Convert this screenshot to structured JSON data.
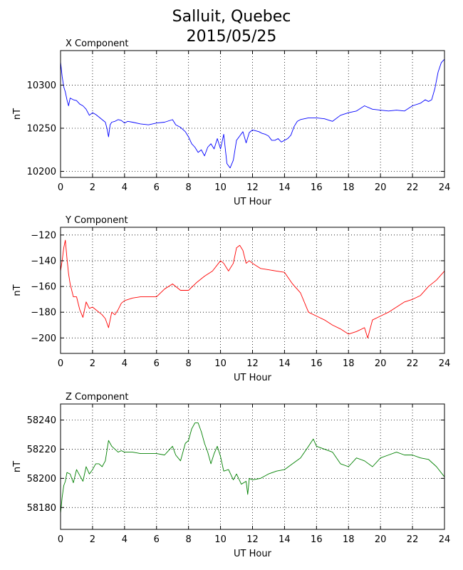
{
  "figure": {
    "title_line1": "Salluit, Quebec",
    "title_line2": "2015/05/25"
  },
  "chart_data": [
    {
      "type": "line",
      "title": "X Component",
      "xlabel": "UT Hour",
      "ylabel": "nT",
      "xlim": [
        0,
        24
      ],
      "ylim": [
        10193,
        10340
      ],
      "xticks": [
        0,
        2,
        4,
        6,
        8,
        10,
        12,
        14,
        16,
        18,
        20,
        22,
        24
      ],
      "yticks": [
        10200,
        10250,
        10300
      ],
      "grid": true,
      "color": "#0000ff",
      "series": [
        {
          "x": [
            0.0,
            0.1,
            0.2,
            0.3,
            0.4,
            0.5,
            0.6,
            0.8,
            1.0,
            1.2,
            1.4,
            1.6,
            1.8,
            2.0,
            2.2,
            2.4,
            2.6,
            2.8,
            2.9,
            3.0,
            3.1,
            3.2,
            3.4,
            3.6,
            3.8,
            4.0,
            4.2,
            4.5,
            5.0,
            5.5,
            6.0,
            6.5,
            7.0,
            7.2,
            7.5,
            7.8,
            8.0,
            8.2,
            8.4,
            8.6,
            8.8,
            9.0,
            9.2,
            9.4,
            9.6,
            9.8,
            10.0,
            10.2,
            10.4,
            10.6,
            10.8,
            11.0,
            11.2,
            11.4,
            11.6,
            11.8,
            12.0,
            12.2,
            12.4,
            12.6,
            12.8,
            13.0,
            13.2,
            13.4,
            13.6,
            13.8,
            14.0,
            14.2,
            14.4,
            14.6,
            14.8,
            15.0,
            15.5,
            16.0,
            16.5,
            17.0,
            17.5,
            18.0,
            18.5,
            19.0,
            19.5,
            20.0,
            20.5,
            21.0,
            21.5,
            22.0,
            22.5,
            22.8,
            23.0,
            23.2,
            23.4,
            23.6,
            23.8,
            24.0
          ],
          "y": [
            10327,
            10310,
            10298,
            10292,
            10283,
            10276,
            10285,
            10283,
            10282,
            10278,
            10276,
            10272,
            10265,
            10268,
            10266,
            10263,
            10260,
            10257,
            10250,
            10240,
            10254,
            10257,
            10258,
            10260,
            10259,
            10256,
            10258,
            10257,
            10255,
            10254,
            10256,
            10257,
            10260,
            10254,
            10251,
            10246,
            10240,
            10232,
            10228,
            10222,
            10225,
            10218,
            10228,
            10232,
            10226,
            10238,
            10226,
            10243,
            10209,
            10204,
            10213,
            10236,
            10241,
            10246,
            10233,
            10245,
            10248,
            10247,
            10246,
            10244,
            10243,
            10241,
            10236,
            10236,
            10238,
            10234,
            10236,
            10238,
            10242,
            10252,
            10258,
            10260,
            10262,
            10262,
            10261,
            10258,
            10265,
            10268,
            10270,
            10276,
            10272,
            10271,
            10270,
            10271,
            10270,
            10276,
            10279,
            10283,
            10281,
            10283,
            10296,
            10315,
            10326,
            10330
          ]
        }
      ]
    },
    {
      "type": "line",
      "title": "Y Component",
      "xlabel": "UT Hour",
      "ylabel": "nT",
      "xlim": [
        0,
        24
      ],
      "ylim": [
        -212,
        -114
      ],
      "xticks": [
        0,
        2,
        4,
        6,
        8,
        10,
        12,
        14,
        16,
        18,
        20,
        22,
        24
      ],
      "yticks": [
        -200,
        -180,
        -160,
        -140,
        -120
      ],
      "grid": true,
      "color": "#ff0000",
      "series": [
        {
          "x": [
            0.0,
            0.1,
            0.2,
            0.3,
            0.4,
            0.5,
            0.6,
            0.8,
            1.0,
            1.2,
            1.4,
            1.6,
            1.8,
            2.0,
            2.2,
            2.4,
            2.6,
            2.8,
            3.0,
            3.2,
            3.4,
            3.6,
            3.8,
            4.0,
            4.5,
            5.0,
            5.5,
            6.0,
            6.5,
            7.0,
            7.5,
            8.0,
            8.5,
            9.0,
            9.5,
            10.0,
            10.2,
            10.5,
            10.8,
            11.0,
            11.2,
            11.4,
            11.6,
            11.8,
            12.0,
            12.5,
            13.0,
            13.5,
            14.0,
            14.5,
            15.0,
            15.5,
            16.0,
            16.5,
            17.0,
            17.5,
            18.0,
            18.5,
            19.0,
            19.2,
            19.5,
            20.0,
            20.5,
            21.0,
            21.5,
            22.0,
            22.5,
            23.0,
            23.5,
            24.0
          ],
          "y": [
            -148,
            -140,
            -130,
            -124,
            -138,
            -150,
            -158,
            -168,
            -168,
            -178,
            -184,
            -172,
            -177,
            -176,
            -178,
            -180,
            -182,
            -185,
            -192,
            -180,
            -182,
            -178,
            -173,
            -171,
            -169,
            -168,
            -168,
            -168,
            -162,
            -158,
            -163,
            -163,
            -157,
            -152,
            -148,
            -140,
            -142,
            -148,
            -142,
            -130,
            -128,
            -132,
            -142,
            -140,
            -142,
            -146,
            -147,
            -148,
            -149,
            -158,
            -165,
            -180,
            -183,
            -186,
            -190,
            -193,
            -197,
            -195,
            -192,
            -200,
            -186,
            -183,
            -180,
            -176,
            -172,
            -170,
            -167,
            -160,
            -155,
            -148
          ]
        }
      ]
    },
    {
      "type": "line",
      "title": "Z Component",
      "xlabel": "UT Hour",
      "ylabel": "nT",
      "xlim": [
        0,
        24
      ],
      "ylim": [
        58165,
        58251
      ],
      "xticks": [
        0,
        2,
        4,
        6,
        8,
        10,
        12,
        14,
        16,
        18,
        20,
        22,
        24
      ],
      "yticks": [
        58180,
        58200,
        58220,
        58240
      ],
      "grid": true,
      "color": "#008000",
      "series": [
        {
          "x": [
            0.0,
            0.1,
            0.2,
            0.3,
            0.4,
            0.6,
            0.8,
            1.0,
            1.2,
            1.4,
            1.6,
            1.8,
            2.0,
            2.2,
            2.4,
            2.6,
            2.8,
            3.0,
            3.2,
            3.4,
            3.6,
            3.8,
            4.0,
            4.5,
            5.0,
            5.5,
            6.0,
            6.5,
            7.0,
            7.2,
            7.5,
            7.8,
            8.0,
            8.2,
            8.4,
            8.6,
            8.8,
            9.0,
            9.2,
            9.4,
            9.6,
            9.8,
            10.0,
            10.2,
            10.5,
            10.8,
            11.0,
            11.3,
            11.6,
            11.7,
            11.8,
            12.0,
            12.5,
            13.0,
            13.5,
            14.0,
            14.5,
            15.0,
            15.5,
            15.8,
            16.0,
            16.5,
            17.0,
            17.5,
            18.0,
            18.5,
            19.0,
            19.5,
            20.0,
            20.5,
            21.0,
            21.5,
            22.0,
            22.5,
            23.0,
            23.5,
            24.0
          ],
          "y": [
            58176,
            58187,
            58195,
            58198,
            58204,
            58203,
            58197,
            58206,
            58202,
            58198,
            58208,
            58203,
            58206,
            58210,
            58210,
            58208,
            58212,
            58226,
            58222,
            58220,
            58218,
            58219,
            58218,
            58218,
            58217,
            58217,
            58217,
            58216,
            58222,
            58216,
            58212,
            58224,
            58226,
            58234,
            58238,
            58238,
            58232,
            58224,
            58218,
            58210,
            58217,
            58222,
            58215,
            58205,
            58206,
            58199,
            58203,
            58196,
            58198,
            58189,
            58200,
            58199,
            58200,
            58203,
            58205,
            58206,
            58210,
            58214,
            58222,
            58227,
            58222,
            58220,
            58218,
            58210,
            58208,
            58214,
            58212,
            58208,
            58214,
            58216,
            58218,
            58216,
            58216,
            58214,
            58213,
            58208,
            58201
          ]
        }
      ]
    }
  ]
}
